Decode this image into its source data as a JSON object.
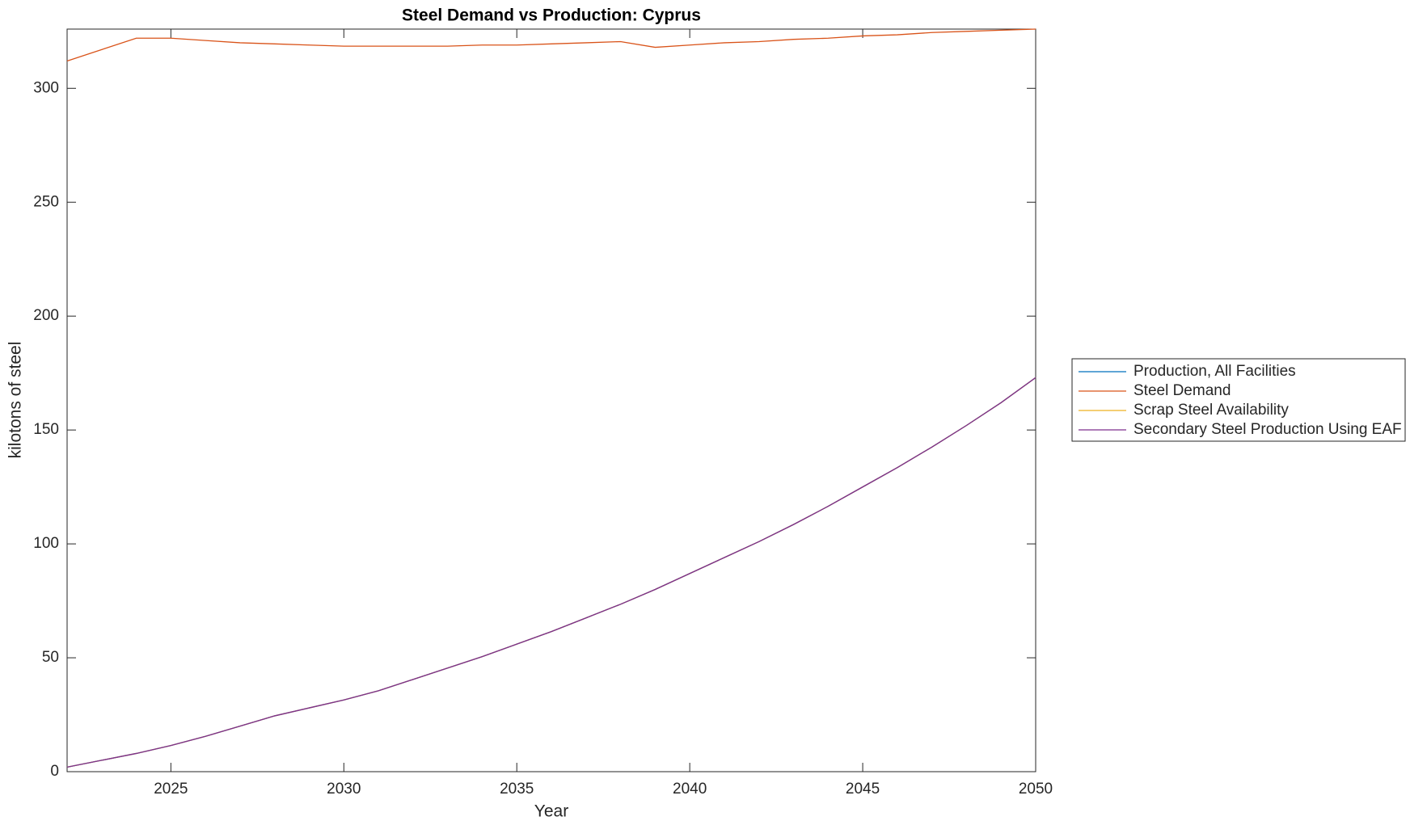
{
  "chart_data": {
    "type": "line",
    "title": "Steel Demand vs Production: Cyprus",
    "x_label": "Year",
    "y_label": "kilotons of steel",
    "x": [
      2022,
      2023,
      2024,
      2025,
      2026,
      2027,
      2028,
      2029,
      2030,
      2031,
      2032,
      2033,
      2034,
      2035,
      2036,
      2037,
      2038,
      2039,
      2040,
      2041,
      2042,
      2043,
      2044,
      2045,
      2046,
      2047,
      2048,
      2049,
      2050
    ],
    "series": [
      {
        "name": "Production, All Facilities",
        "color": "#0072BD",
        "values": [
          2,
          5,
          8,
          11.5,
          15.5,
          20,
          24.5,
          28,
          31.5,
          35.5,
          40.5,
          45.5,
          50.5,
          56,
          61.5,
          67.5,
          73.5,
          80,
          87,
          94,
          101,
          108.5,
          116.5,
          125,
          133.5,
          142.5,
          152,
          162,
          173
        ]
      },
      {
        "name": "Steel Demand",
        "color": "#D95319",
        "values": [
          312,
          317,
          322,
          322,
          321,
          320,
          319.5,
          319,
          318.5,
          318.5,
          318.5,
          318.5,
          319,
          319,
          319.5,
          320,
          320.5,
          318,
          319,
          320,
          320.5,
          321.5,
          322,
          323,
          323.5,
          324.5,
          325,
          325.5,
          326
        ]
      },
      {
        "name": "Scrap Steel Availability",
        "color": "#EDB120",
        "values": [
          2,
          5,
          8,
          11.5,
          15.5,
          20,
          24.5,
          28,
          31.5,
          35.5,
          40.5,
          45.5,
          50.5,
          56,
          61.5,
          67.5,
          73.5,
          80,
          87,
          94,
          101,
          108.5,
          116.5,
          125,
          133.5,
          142.5,
          152,
          162,
          173
        ]
      },
      {
        "name": "Secondary Steel Production Using EAF",
        "color": "#7E2F8E",
        "values": [
          2,
          5,
          8,
          11.5,
          15.5,
          20,
          24.5,
          28,
          31.5,
          35.5,
          40.5,
          45.5,
          50.5,
          56,
          61.5,
          67.5,
          73.5,
          80,
          87,
          94,
          101,
          108.5,
          116.5,
          125,
          133.5,
          142.5,
          152,
          162,
          173
        ]
      }
    ],
    "xlim": [
      2022,
      2050
    ],
    "xticks": [
      2025,
      2030,
      2035,
      2040,
      2045,
      2050
    ],
    "ylim": [
      0,
      326
    ],
    "yticks": [
      0,
      50,
      100,
      150,
      200,
      250,
      300
    ],
    "grid": false,
    "legend_position": "right"
  }
}
